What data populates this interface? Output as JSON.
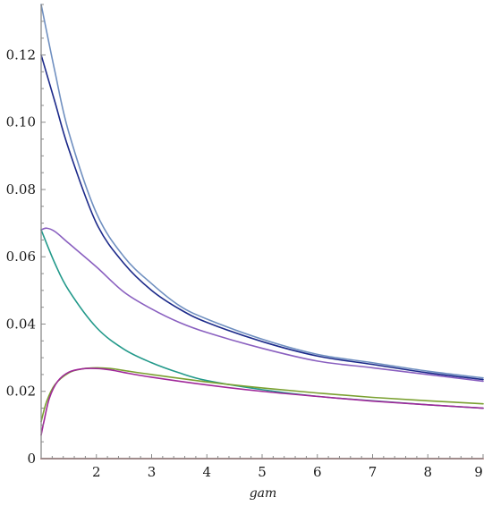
{
  "chart_data": {
    "type": "line",
    "title": "",
    "xlabel": "gam",
    "ylabel": "",
    "xlim": [
      1,
      9
    ],
    "ylim": [
      0,
      0.135
    ],
    "x_ticks": [
      2,
      3,
      4,
      5,
      6,
      7,
      8,
      9
    ],
    "y_ticks": [
      0,
      0.02,
      0.04,
      0.06,
      0.08,
      0.1,
      0.12
    ],
    "x_tick_labels": [
      "2",
      "3",
      "4",
      "5",
      "6",
      "7",
      "8",
      "9"
    ],
    "y_tick_labels": [
      "0",
      "0.02",
      "0.04",
      "0.06",
      "0.08",
      "0.10",
      "0.12"
    ],
    "grid": false,
    "legend": "none",
    "series": [
      {
        "color": "#6f8fc0",
        "x": [
          1.0,
          1.25,
          1.5,
          2.0,
          2.5,
          3.0,
          3.5,
          4.0,
          5.0,
          6.0,
          7.0,
          8.0,
          9.0
        ],
        "y": [
          0.135,
          0.115,
          0.097,
          0.073,
          0.06,
          0.052,
          0.0455,
          0.0415,
          0.0355,
          0.031,
          0.0285,
          0.026,
          0.024
        ]
      },
      {
        "color": "#1c2a8a",
        "x": [
          1.0,
          1.25,
          1.5,
          2.0,
          2.5,
          3.0,
          3.5,
          4.0,
          5.0,
          6.0,
          7.0,
          8.0,
          9.0
        ],
        "y": [
          0.12,
          0.106,
          0.092,
          0.07,
          0.058,
          0.05,
          0.0445,
          0.0405,
          0.0348,
          0.0305,
          0.028,
          0.0255,
          0.0235
        ]
      },
      {
        "color": "#8a60c0",
        "x": [
          1.0,
          1.1,
          1.25,
          1.5,
          2.0,
          2.5,
          3.0,
          3.5,
          4.0,
          5.0,
          6.0,
          7.0,
          8.0,
          9.0
        ],
        "y": [
          0.068,
          0.0685,
          0.0675,
          0.064,
          0.057,
          0.0495,
          0.0445,
          0.0405,
          0.0375,
          0.0328,
          0.029,
          0.027,
          0.025,
          0.023
        ]
      },
      {
        "color": "#22998a",
        "x": [
          1.0,
          1.25,
          1.5,
          2.0,
          2.5,
          3.0,
          3.5,
          4.0,
          5.0,
          6.0,
          7.0,
          8.0,
          9.0
        ],
        "y": [
          0.068,
          0.058,
          0.05,
          0.039,
          0.0325,
          0.0285,
          0.0255,
          0.0232,
          0.0205,
          0.0185,
          0.0172,
          0.016,
          0.015
        ]
      },
      {
        "color": "#7aa030",
        "x": [
          1.0,
          1.1,
          1.25,
          1.5,
          1.75,
          2.0,
          2.25,
          2.5,
          3.0,
          4.0,
          5.0,
          6.0,
          7.0,
          8.0,
          9.0
        ],
        "y": [
          0.011,
          0.017,
          0.022,
          0.0255,
          0.0267,
          0.027,
          0.0268,
          0.0262,
          0.025,
          0.0228,
          0.021,
          0.0195,
          0.0182,
          0.0172,
          0.0163
        ]
      },
      {
        "color": "#a0289a",
        "x": [
          1.0,
          1.05,
          1.15,
          1.3,
          1.5,
          1.75,
          2.0,
          2.25,
          2.5,
          3.0,
          4.0,
          5.0,
          6.0,
          7.0,
          8.0,
          9.0
        ],
        "y": [
          0.007,
          0.011,
          0.018,
          0.023,
          0.0257,
          0.0267,
          0.0268,
          0.0264,
          0.0256,
          0.0242,
          0.0219,
          0.02,
          0.0185,
          0.0171,
          0.016,
          0.015
        ]
      },
      {
        "color": "#8b1a1a",
        "x": [
          1.0,
          9.0
        ],
        "y": [
          0.0,
          0.0
        ]
      }
    ]
  }
}
